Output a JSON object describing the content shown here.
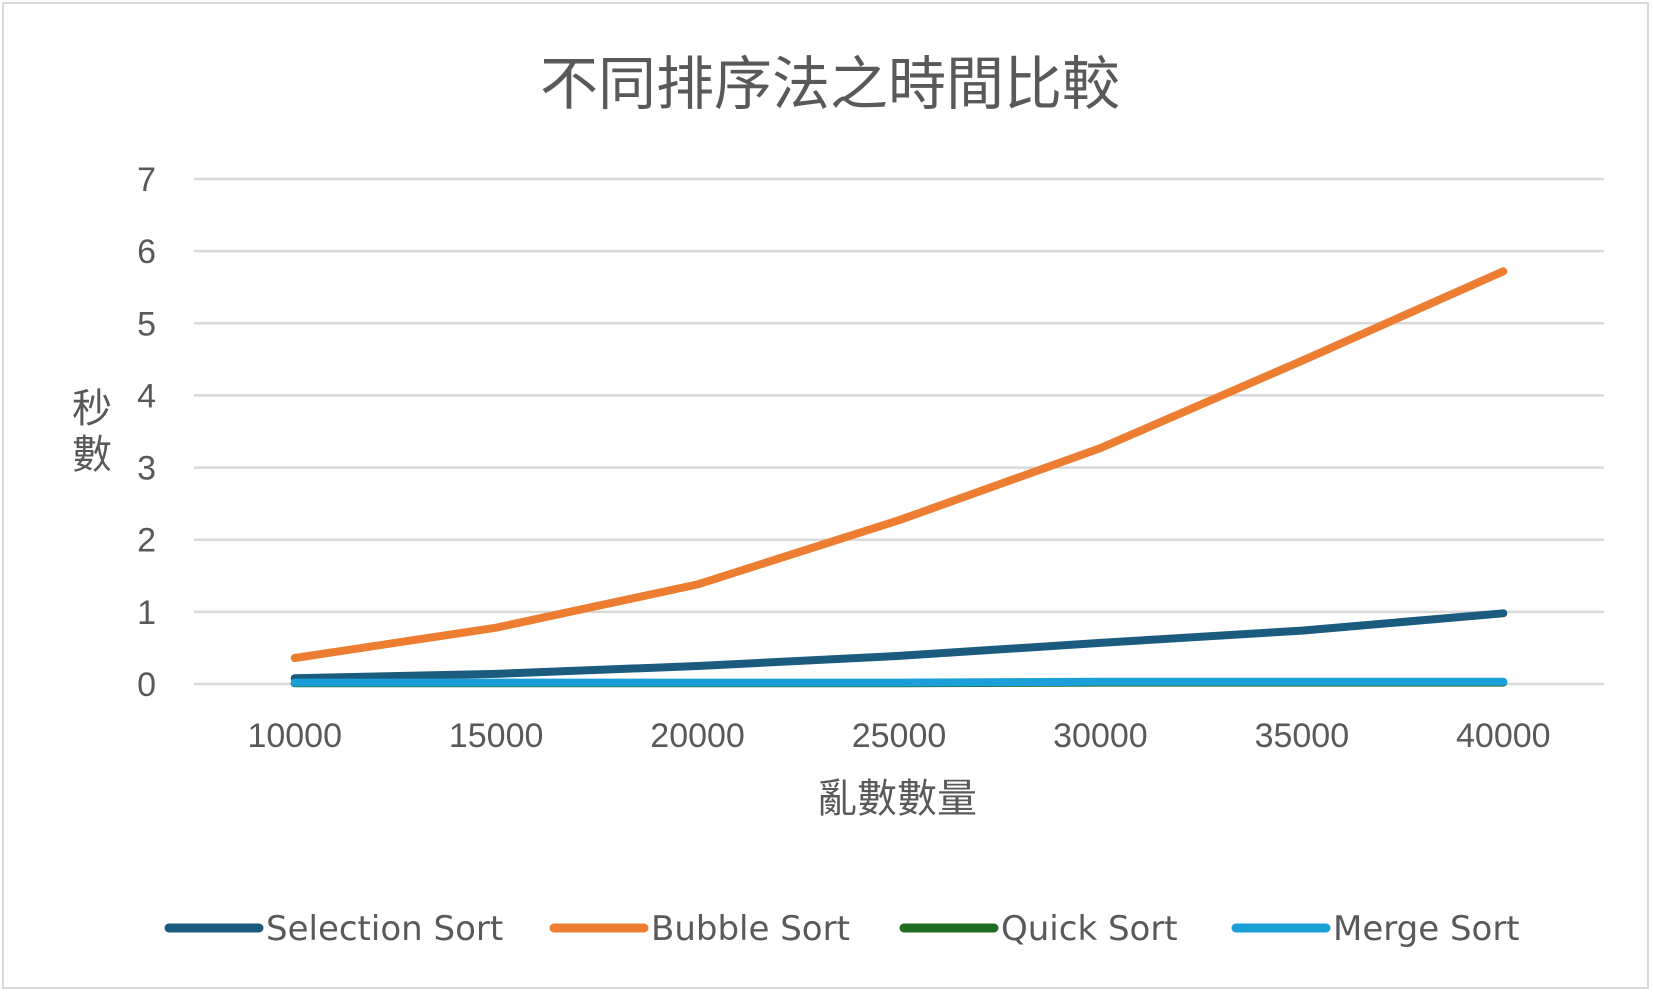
{
  "chart_data": {
    "type": "line",
    "title": "不同排序法之時間比較",
    "xlabel": "亂數數量",
    "ylabel": "秒數",
    "categories": [
      "10000",
      "15000",
      "20000",
      "25000",
      "30000",
      "35000",
      "40000"
    ],
    "ylim": [
      0,
      7
    ],
    "yticks": [
      "0",
      "1",
      "2",
      "3",
      "4",
      "5",
      "6",
      "7"
    ],
    "grid": true,
    "legend_position": "bottom",
    "series": [
      {
        "name": "Selection Sort",
        "color": "#1a5b7e",
        "values": [
          0.08,
          0.14,
          0.25,
          0.39,
          0.57,
          0.74,
          0.98
        ]
      },
      {
        "name": "Bubble Sort",
        "color": "#ed7d31",
        "values": [
          0.36,
          0.78,
          1.38,
          2.27,
          3.27,
          4.48,
          5.72
        ]
      },
      {
        "name": "Quick Sort",
        "color": "#1e6b22",
        "values": [
          0.01,
          0.01,
          0.01,
          0.01,
          0.02,
          0.02,
          0.02
        ]
      },
      {
        "name": "Merge Sort",
        "color": "#1a9fd8",
        "values": [
          0.02,
          0.02,
          0.02,
          0.02,
          0.03,
          0.03,
          0.03
        ]
      }
    ]
  }
}
